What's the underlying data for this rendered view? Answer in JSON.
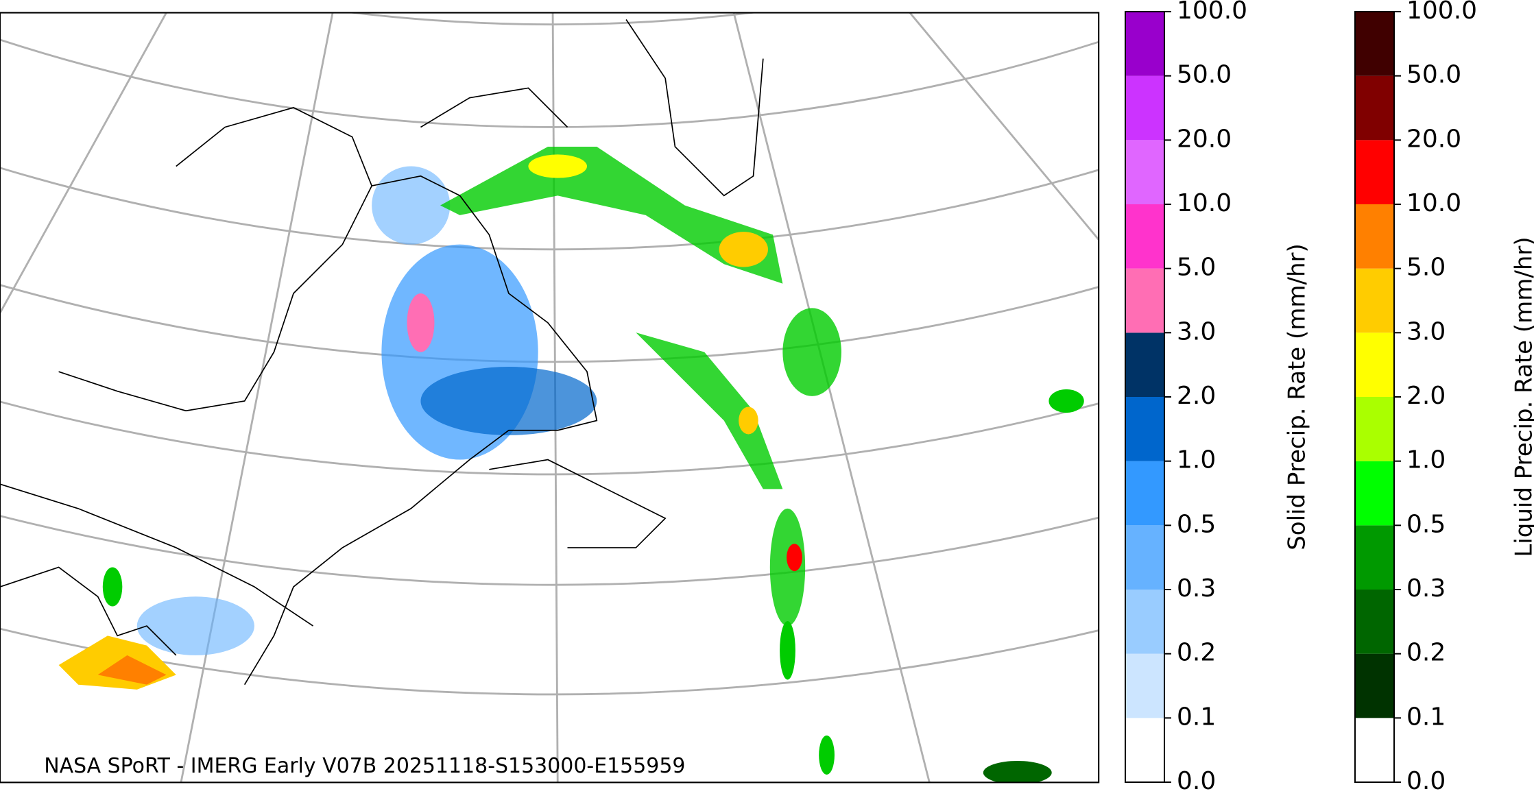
{
  "map": {
    "annotation": "NASA SPoRT - IMERG Early V07B 20251118-S153000-E155959"
  },
  "colorbars": [
    {
      "label": "Solid Precip. Rate (mm/hr)",
      "ticks": [
        {
          "value": 0,
          "label": "0.0"
        },
        {
          "value": 0.1,
          "label": "0.1"
        },
        {
          "value": 0.2,
          "label": "0.2"
        },
        {
          "value": 0.3,
          "label": "0.3"
        },
        {
          "value": 0.5,
          "label": "0.5"
        },
        {
          "value": 1,
          "label": "1.0"
        },
        {
          "value": 2,
          "label": "2.0"
        },
        {
          "value": 3,
          "label": "3.0"
        },
        {
          "value": 5,
          "label": "5.0"
        },
        {
          "value": 10,
          "label": "10.0"
        },
        {
          "value": 20,
          "label": "20.0"
        },
        {
          "value": 50,
          "label": "50.0"
        },
        {
          "value": 100,
          "label": "100.0"
        }
      ],
      "colors": [
        "#ffffff",
        "#cce5ff",
        "#99ccff",
        "#66b2ff",
        "#3399ff",
        "#0066cc",
        "#003366",
        "#ff6eb4",
        "#ff33cc",
        "#e066ff",
        "#cc33ff",
        "#9900cc"
      ]
    },
    {
      "label": "Liquid Precip. Rate (mm/hr)",
      "ticks": [
        {
          "value": 0,
          "label": "0.0"
        },
        {
          "value": 0.1,
          "label": "0.1"
        },
        {
          "value": 0.2,
          "label": "0.2"
        },
        {
          "value": 0.3,
          "label": "0.3"
        },
        {
          "value": 0.5,
          "label": "0.5"
        },
        {
          "value": 1,
          "label": "1.0"
        },
        {
          "value": 2,
          "label": "2.0"
        },
        {
          "value": 3,
          "label": "3.0"
        },
        {
          "value": 5,
          "label": "5.0"
        },
        {
          "value": 10,
          "label": "10.0"
        },
        {
          "value": 20,
          "label": "20.0"
        },
        {
          "value": 50,
          "label": "50.0"
        },
        {
          "value": 100,
          "label": "100.0"
        }
      ],
      "colors": [
        "#ffffff",
        "#003300",
        "#006600",
        "#009900",
        "#00ff00",
        "#aaff00",
        "#ffff00",
        "#ffcc00",
        "#ff8000",
        "#ff0000",
        "#800000",
        "#400000"
      ]
    }
  ]
}
